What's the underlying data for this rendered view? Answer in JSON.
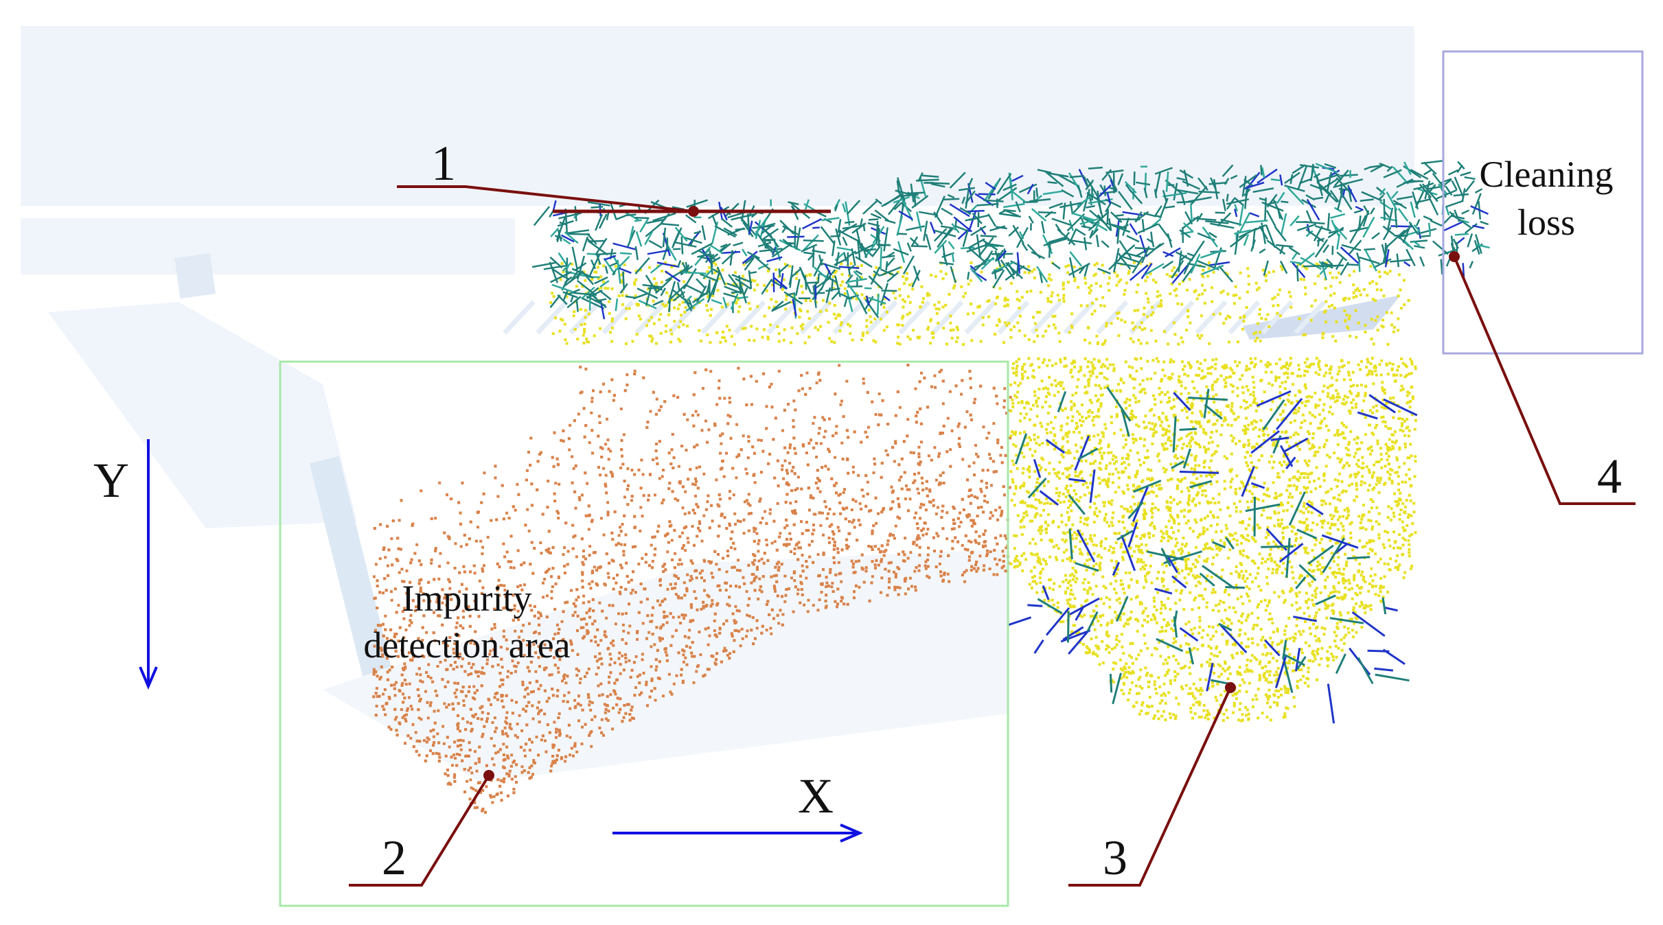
{
  "figure": {
    "callouts": [
      {
        "number": "1"
      },
      {
        "number": "2"
      },
      {
        "number": "3"
      },
      {
        "number": "4"
      }
    ],
    "axes": {
      "x_label": "X",
      "y_label": "Y"
    },
    "regions": {
      "impurity_area_line1": "Impurity",
      "impurity_area_line2": "detection area",
      "cleaning_loss_line1": "Cleaning",
      "cleaning_loss_line2": "loss"
    }
  },
  "colors": {
    "straw": "#1f7f78",
    "straw_light": "#2ea89a",
    "grain": "#e8e020",
    "impurity": "#d9824a",
    "short_straw": "#1f35c8",
    "leader": "#7a0f0f",
    "axis_arrow": "#1010e0",
    "impurity_box": "#a8e8a8",
    "loss_box": "#a8a8e0",
    "machine": "#d8e6f3"
  }
}
